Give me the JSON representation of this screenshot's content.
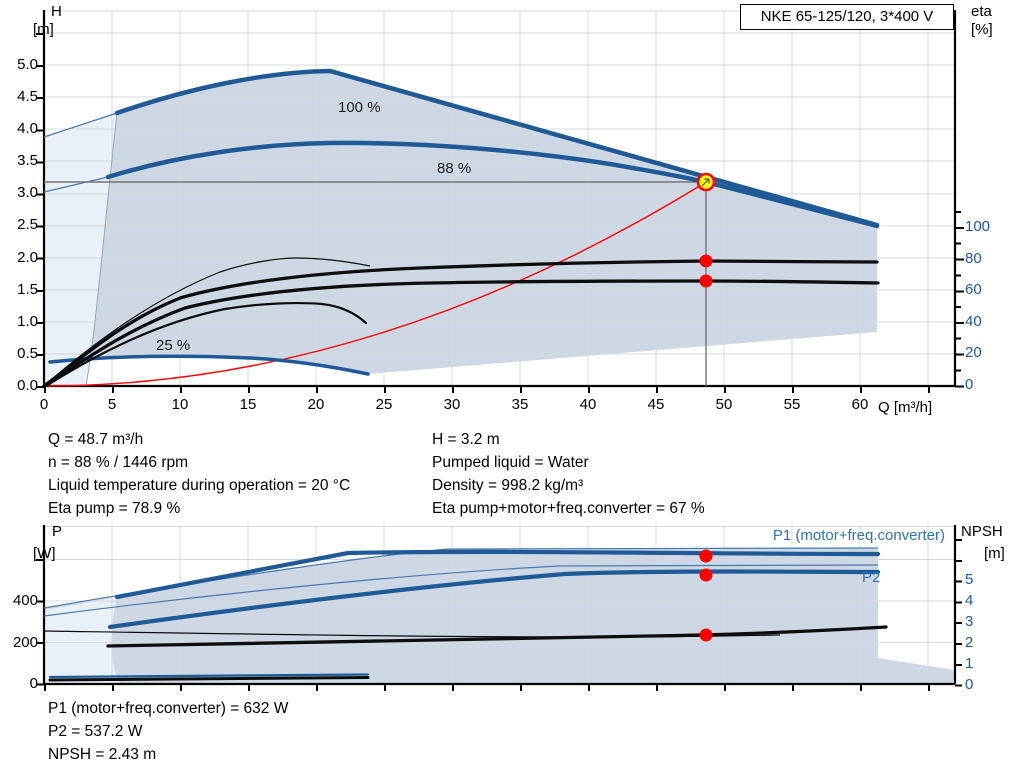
{
  "colors": {
    "curve-blue": "#1f5a96",
    "thin-blue": "#4679ae",
    "shade": "#cdd8e4",
    "shade-pale": "#e9f0f8",
    "grid": "#d5d9dd",
    "axis-black": "#000000",
    "red": "#ff0000",
    "yellow": "#ffff00",
    "op-gray": "#757575",
    "blue-tick-text": "#2056a8",
    "blue-label": "#2e74b5",
    "black-curve": "#0d0d0d",
    "qmin-gray": "#90a7bd"
  },
  "title_box": {
    "label": "NKE 65-125/120, 3*400 V"
  },
  "top_chart": {
    "y_axis": {
      "name": "H",
      "unit": "[m]",
      "ticks": [
        "5.0",
        "4.5",
        "4.0",
        "3.5",
        "3.0",
        "2.5",
        "2.0",
        "1.5",
        "1.0",
        "0.5",
        "0.0"
      ]
    },
    "x_axis": {
      "ticks": [
        "0",
        "5",
        "10",
        "15",
        "20",
        "25",
        "30",
        "35",
        "40",
        "45",
        "50",
        "55",
        "60"
      ],
      "unit_label": "Q [m³/h]"
    },
    "eta_axis": {
      "name": "eta",
      "unit": "[%]",
      "ticks": [
        "100",
        "80",
        "60",
        "40",
        "20",
        "0"
      ]
    },
    "curve_labels": {
      "speed_100": "100 %",
      "speed_88": "88 %",
      "speed_min": "25 %"
    }
  },
  "results_top": {
    "left": [
      "Q = 48.7 m³/h",
      "n = 88 % / 1446 rpm",
      "Liquid temperature during operation = 20 °C",
      "Eta pump = 78.9 %"
    ],
    "right": [
      "H = 3.2 m",
      "Pumped liquid = Water",
      "Density = 998.2 kg/m³",
      "Eta pump+motor+freq.converter = 67 %"
    ]
  },
  "bottom_chart": {
    "p_axis": {
      "name": "P",
      "unit": "[W]",
      "ticks": [
        "400",
        "200",
        "0"
      ]
    },
    "npsh_axis": {
      "name": "NPSH",
      "unit": "[m]",
      "ticks": [
        "5",
        "4",
        "3",
        "2",
        "1",
        "0"
      ]
    },
    "p1_label": "P1 (motor+freq.converter)",
    "p2_label": "P2"
  },
  "results_bottom": {
    "lines": [
      "P1 (motor+freq.converter) = 632 W",
      "P2 = 537.2 W",
      "NPSH = 2.43 m"
    ]
  },
  "duty_point": {
    "Q": 48.7,
    "H": 3.2,
    "eta_pump": 78.9,
    "eta_total": 67,
    "P1": 632,
    "P2": 537.2,
    "NPSH": 2.43,
    "speed_pct": 88,
    "rpm": 1446
  },
  "chart_data": [
    {
      "type": "line",
      "title": "NKE 65-125/120, 3*400 V",
      "xlabel": "Q [m³/h]",
      "ylabel": "H [m]",
      "y2label": "eta [%]",
      "xlim": [
        0,
        67
      ],
      "ylim": [
        0,
        5.85
      ],
      "y2lim": [
        0,
        100
      ],
      "grid": true,
      "series": [
        {
          "name": "H max speed (100 %)",
          "x": [
            5.4,
            10,
            15,
            20.5,
            30,
            40,
            50,
            61.3
          ],
          "y": [
            4.25,
            4.6,
            4.8,
            4.9,
            4.34,
            3.75,
            3.16,
            2.5
          ]
        },
        {
          "name": "H duty speed (88 %)",
          "x": [
            4.7,
            10,
            15,
            20,
            30,
            40,
            48.7,
            61.3
          ],
          "y": [
            3.25,
            3.55,
            3.72,
            3.78,
            3.69,
            3.47,
            3.2,
            2.49
          ]
        },
        {
          "name": "H min speed (25 %)",
          "x": [
            0.4,
            8,
            15,
            20,
            23.8
          ],
          "y": [
            0.37,
            0.42,
            0.4,
            0.31,
            0.19
          ]
        },
        {
          "name": "Eta pump",
          "x": [
            0,
            10,
            20,
            30,
            40,
            48.7,
            61.3
          ],
          "y2": [
            0,
            38,
            60,
            71,
            77,
            78.9,
            78.5
          ]
        },
        {
          "name": "Eta pump+motor+freq.converter",
          "x": [
            0,
            10,
            20,
            30,
            40,
            48.7,
            61.3
          ],
          "y2": [
            0,
            32,
            52,
            63,
            66,
            67,
            64.5
          ]
        },
        {
          "name": "System curve (red)",
          "x": [
            0,
            12.2,
            24.4,
            36.5,
            48.7
          ],
          "y": [
            0,
            0.2,
            0.8,
            1.8,
            3.2
          ]
        }
      ],
      "duty_point": {
        "x": 48.7,
        "y": 3.2
      }
    },
    {
      "type": "line",
      "xlabel": "Q [m³/h]",
      "ylabel": "P [W]",
      "y2label": "NPSH [m]",
      "xlim": [
        0,
        67
      ],
      "ylim": [
        0,
        770
      ],
      "y2lim": [
        0,
        7
      ],
      "grid": true,
      "series": [
        {
          "name": "P1 (motor+freq.converter)",
          "x": [
            5.4,
            15,
            22.4,
            35,
            48.7,
            61.3
          ],
          "y": [
            419,
            540,
            631,
            630,
            632,
            632
          ]
        },
        {
          "name": "P2",
          "x": [
            4.9,
            15,
            25,
            38,
            48.7,
            61.3
          ],
          "y": [
            275,
            360,
            448,
            520,
            537.2,
            540
          ]
        },
        {
          "name": "NPSH",
          "x": [
            0,
            15,
            30,
            48.7,
            62
          ],
          "y2": [
            2.55,
            2.45,
            2.33,
            2.43,
            2.75
          ]
        },
        {
          "name": "P min speed",
          "x": [
            0.4,
            23.8
          ],
          "y": [
            20,
            31
          ]
        }
      ],
      "duty_point": {
        "x": 48.7,
        "y": 632
      }
    }
  ]
}
